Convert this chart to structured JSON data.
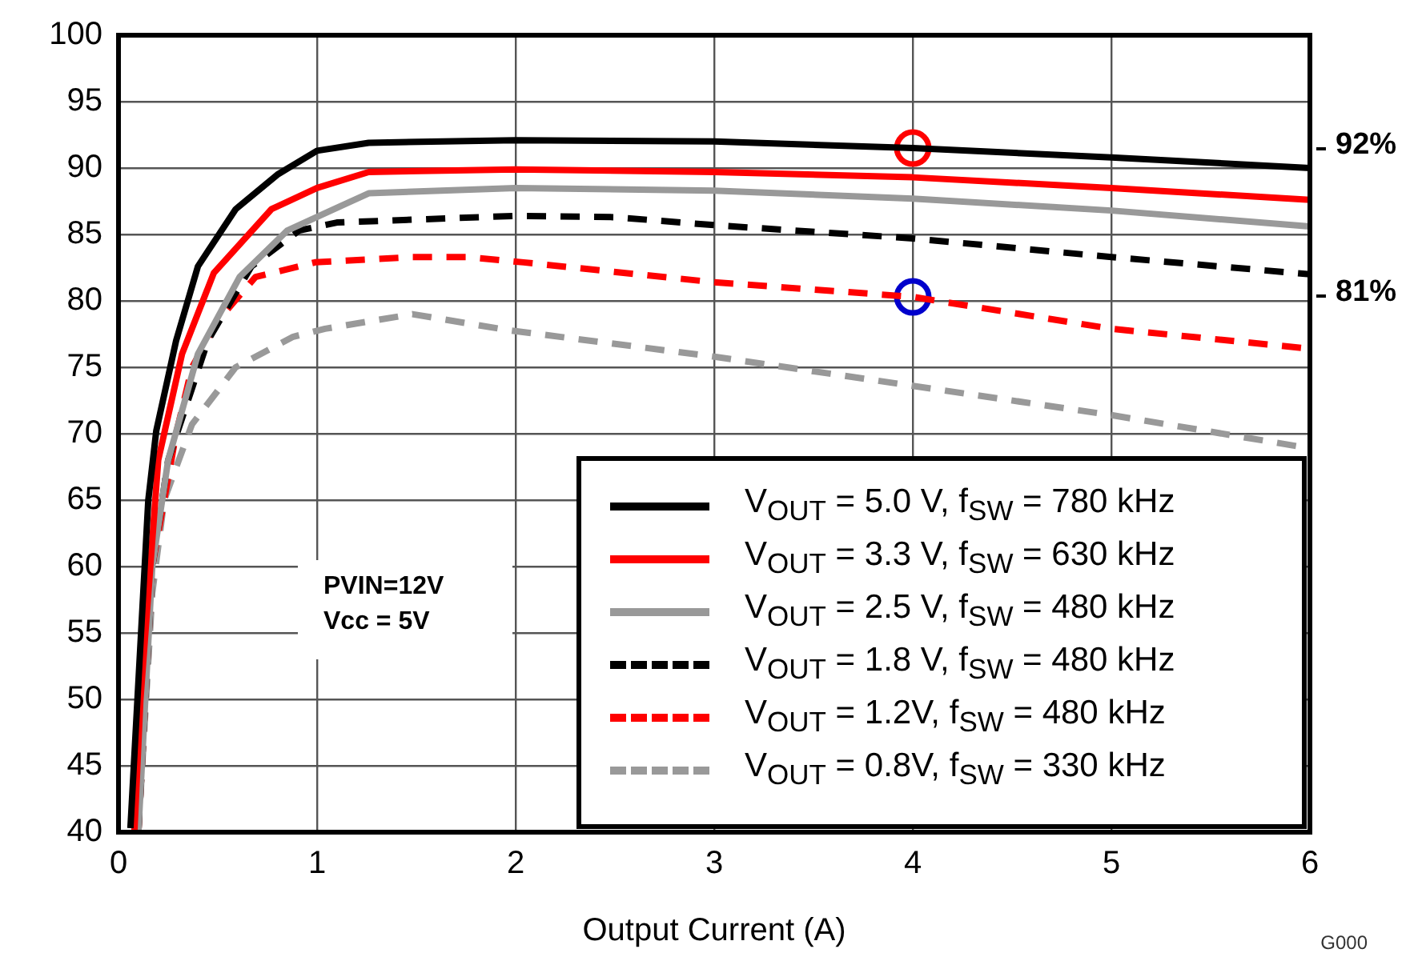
{
  "chart_data": {
    "type": "line",
    "xlabel": "Output Current (A)",
    "xlim": [
      0,
      6
    ],
    "xticks": [
      0,
      1,
      2,
      3,
      4,
      5,
      6
    ],
    "ylim": [
      40,
      100
    ],
    "yticks": [
      40,
      45,
      50,
      55,
      60,
      65,
      70,
      75,
      80,
      85,
      90,
      95,
      100
    ],
    "grid": true,
    "legend": "bottom right",
    "marker": "none",
    "series": [
      {
        "name": "V$_{OUT}$ = 5.0 V, f$_{SW}$ = 780 kHz",
        "color": "#000000",
        "line_style": "solid",
        "x": [
          0.06,
          0.15,
          0.19,
          0.29,
          0.4,
          0.59,
          0.8,
          1.0,
          1.26,
          2,
          3,
          4,
          5,
          6
        ],
        "values": [
          40.3,
          65,
          70.2,
          77,
          82.6,
          86.9,
          89.5,
          91.3,
          91.9,
          92.1,
          92,
          91.5,
          90.8,
          90
        ]
      },
      {
        "name": "V$_{OUT}$ = 3.3 V, f$_{SW}$ = 630 kHz",
        "color": "#ff0000",
        "line_style": "solid",
        "x": [
          0.08,
          0.11,
          0.2,
          0.32,
          0.48,
          0.77,
          1.0,
          1.26,
          2,
          3,
          4,
          5,
          6
        ],
        "values": [
          40,
          49.9,
          68,
          76,
          82.1,
          86.9,
          88.5,
          89.7,
          89.9,
          89.7,
          89.3,
          88.5,
          87.6
        ]
      },
      {
        "name": "V$_{OUT}$ = 2.5 V, f$_{SW}$ = 480 kHz",
        "color": "#999999",
        "line_style": "solid",
        "x": [
          0.1,
          0.17,
          0.25,
          0.4,
          0.61,
          0.85,
          1.26,
          2,
          3,
          4,
          5,
          6
        ],
        "values": [
          40,
          60,
          68,
          76,
          81.8,
          85.3,
          88.1,
          88.5,
          88.3,
          87.7,
          86.8,
          85.6
        ]
      },
      {
        "name": "V$_{OUT}$ = 1.8 V, f$_{SW}$ = 480 kHz",
        "color": "#000000",
        "line_style": "dashed",
        "x": [
          0.1,
          0.17,
          0.25,
          0.45,
          0.67,
          0.91,
          1.1,
          2,
          2.5,
          3,
          4,
          5,
          6
        ],
        "values": [
          40,
          60,
          68,
          77,
          82.6,
          85.3,
          85.9,
          86.4,
          86.3,
          85.7,
          84.7,
          83.3,
          82
        ]
      },
      {
        "name": "V$_{OUT}$ = 1.2V, f$_{SW}$ = 480 kHz",
        "color": "#ff0000",
        "line_style": "dashed",
        "x": [
          0.1,
          0.17,
          0.29,
          0.37,
          0.5,
          0.69,
          0.99,
          1.48,
          1.75,
          2.04,
          3,
          4,
          5,
          6
        ],
        "values": [
          40,
          60,
          70,
          75,
          78.5,
          81.8,
          82.9,
          83.3,
          83.3,
          82.9,
          81.4,
          80.3,
          77.9,
          76.4
        ]
      },
      {
        "name": "V$_{OUT}$ = 0.8V, f$_{SW}$ = 330 kHz",
        "color": "#999999",
        "line_style": "dashed",
        "x": [
          0.1,
          0.17,
          0.23,
          0.37,
          0.59,
          0.88,
          1.04,
          1.48,
          1.96,
          3,
          4,
          5,
          6
        ],
        "values": [
          40,
          58,
          65,
          70.7,
          75,
          77.3,
          77.9,
          79,
          77.8,
          75.8,
          73.6,
          71.4,
          68.9
        ]
      },
      {
        "type": "scatter",
        "marker": "circle",
        "color": "#ff0000",
        "x": [
          4
        ],
        "values": [
          91.5
        ]
      },
      {
        "type": "scatter",
        "marker": "circle",
        "color": "#0000cc",
        "x": [
          4
        ],
        "values": [
          80.3
        ]
      }
    ],
    "annotations": [
      "92%",
      "81%",
      "PVIN=12V",
      "Vcc = 5V",
      "G000"
    ]
  }
}
